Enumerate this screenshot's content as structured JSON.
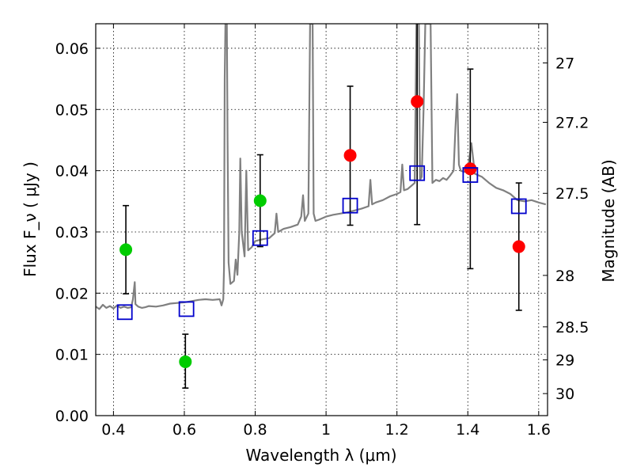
{
  "chart_data": {
    "type": "scatter",
    "title": "",
    "xlabel": "Wavelength  λ (μm)",
    "ylabel": "Flux  F_ν  ( μJy )",
    "ylabel_right": "Magnitude (AB)",
    "xlim": [
      0.35,
      1.625
    ],
    "ylim": [
      0.0,
      0.064
    ],
    "grid": true,
    "xticks": [
      0.4,
      0.6,
      0.8,
      1.0,
      1.2,
      1.4,
      1.6
    ],
    "xtick_labels": [
      "0.4",
      "0.6",
      "0.8",
      "1",
      "1.2",
      "1.4",
      "1.6"
    ],
    "yticks": [
      0.0,
      0.01,
      0.02,
      0.03,
      0.04,
      0.05,
      0.06
    ],
    "ytick_labels": [
      "0.00",
      "0.01",
      "0.02",
      "0.03",
      "0.04",
      "0.05",
      "0.06"
    ],
    "right_ticks": [
      {
        "label": "27",
        "flux": 0.0576
      },
      {
        "label": "27.2",
        "flux": 0.0479
      },
      {
        "label": "27.5",
        "flux": 0.0363
      },
      {
        "label": "28",
        "flux": 0.0229
      },
      {
        "label": "28.5",
        "flux": 0.0145
      },
      {
        "label": "29",
        "flux": 0.0091
      },
      {
        "label": "30",
        "flux": 0.0036
      }
    ],
    "series": [
      {
        "kind": "line",
        "color": "#808080",
        "points": [
          [
            0.35,
            0.0178
          ],
          [
            0.36,
            0.0174
          ],
          [
            0.37,
            0.0181
          ],
          [
            0.38,
            0.0176
          ],
          [
            0.39,
            0.0179
          ],
          [
            0.4,
            0.0175
          ],
          [
            0.41,
            0.018
          ],
          [
            0.42,
            0.0176
          ],
          [
            0.43,
            0.0178
          ],
          [
            0.44,
            0.0176
          ],
          [
            0.45,
            0.0177
          ],
          [
            0.455,
            0.019
          ],
          [
            0.46,
            0.0218
          ],
          [
            0.462,
            0.0182
          ],
          [
            0.47,
            0.0178
          ],
          [
            0.48,
            0.0176
          ],
          [
            0.49,
            0.0177
          ],
          [
            0.5,
            0.0179
          ],
          [
            0.52,
            0.0178
          ],
          [
            0.54,
            0.018
          ],
          [
            0.56,
            0.0183
          ],
          [
            0.58,
            0.0184
          ],
          [
            0.6,
            0.0185
          ],
          [
            0.62,
            0.0187
          ],
          [
            0.64,
            0.0189
          ],
          [
            0.66,
            0.019
          ],
          [
            0.68,
            0.0189
          ],
          [
            0.7,
            0.019
          ],
          [
            0.705,
            0.018
          ],
          [
            0.71,
            0.019
          ],
          [
            0.712,
            0.024
          ],
          [
            0.714,
            0.055
          ],
          [
            0.716,
            0.064
          ],
          [
            0.72,
            0.064
          ],
          [
            0.722,
            0.045
          ],
          [
            0.725,
            0.025
          ],
          [
            0.73,
            0.0215
          ],
          [
            0.74,
            0.022
          ],
          [
            0.745,
            0.0255
          ],
          [
            0.75,
            0.023
          ],
          [
            0.755,
            0.03
          ],
          [
            0.758,
            0.042
          ],
          [
            0.762,
            0.03
          ],
          [
            0.77,
            0.026
          ],
          [
            0.775,
            0.04
          ],
          [
            0.78,
            0.027
          ],
          [
            0.79,
            0.0275
          ],
          [
            0.8,
            0.0285
          ],
          [
            0.82,
            0.0288
          ],
          [
            0.84,
            0.029
          ],
          [
            0.855,
            0.0298
          ],
          [
            0.86,
            0.033
          ],
          [
            0.865,
            0.03
          ],
          [
            0.88,
            0.0305
          ],
          [
            0.9,
            0.0308
          ],
          [
            0.92,
            0.0312
          ],
          [
            0.93,
            0.0325
          ],
          [
            0.935,
            0.036
          ],
          [
            0.94,
            0.0318
          ],
          [
            0.95,
            0.033
          ],
          [
            0.955,
            0.064
          ],
          [
            0.962,
            0.064
          ],
          [
            0.965,
            0.033
          ],
          [
            0.97,
            0.0318
          ],
          [
            0.98,
            0.032
          ],
          [
            1.0,
            0.0325
          ],
          [
            1.02,
            0.0328
          ],
          [
            1.04,
            0.033
          ],
          [
            1.06,
            0.0332
          ],
          [
            1.08,
            0.0335
          ],
          [
            1.1,
            0.0338
          ],
          [
            1.12,
            0.0342
          ],
          [
            1.125,
            0.0385
          ],
          [
            1.13,
            0.0345
          ],
          [
            1.14,
            0.0348
          ],
          [
            1.16,
            0.0352
          ],
          [
            1.18,
            0.0358
          ],
          [
            1.2,
            0.0362
          ],
          [
            1.21,
            0.0365
          ],
          [
            1.215,
            0.041
          ],
          [
            1.22,
            0.0368
          ],
          [
            1.23,
            0.037
          ],
          [
            1.24,
            0.0375
          ],
          [
            1.25,
            0.038
          ],
          [
            1.255,
            0.064
          ],
          [
            1.262,
            0.064
          ],
          [
            1.265,
            0.0385
          ],
          [
            1.27,
            0.039
          ],
          [
            1.275,
            0.05
          ],
          [
            1.28,
            0.064
          ],
          [
            1.29,
            0.064
          ],
          [
            1.295,
            0.064
          ],
          [
            1.3,
            0.038
          ],
          [
            1.31,
            0.0385
          ],
          [
            1.32,
            0.0383
          ],
          [
            1.33,
            0.0388
          ],
          [
            1.34,
            0.0385
          ],
          [
            1.35,
            0.0392
          ],
          [
            1.36,
            0.04
          ],
          [
            1.365,
            0.047
          ],
          [
            1.37,
            0.0525
          ],
          [
            1.375,
            0.041
          ],
          [
            1.38,
            0.04
          ],
          [
            1.39,
            0.0398
          ],
          [
            1.4,
            0.04
          ],
          [
            1.41,
            0.0445
          ],
          [
            1.42,
            0.0395
          ],
          [
            1.44,
            0.039
          ],
          [
            1.46,
            0.038
          ],
          [
            1.48,
            0.0372
          ],
          [
            1.5,
            0.0368
          ],
          [
            1.52,
            0.0362
          ],
          [
            1.54,
            0.0352
          ],
          [
            1.56,
            0.035
          ],
          [
            1.58,
            0.0352
          ],
          [
            1.6,
            0.0348
          ],
          [
            1.62,
            0.0345
          ]
        ]
      },
      {
        "kind": "points",
        "marker": "circle",
        "color": "#00cc00",
        "points": [
          {
            "x": 0.435,
            "y": 0.0271
          },
          {
            "x": 0.603,
            "y": 0.0088,
            "err": [
              0.0045,
              0.0133
            ]
          },
          {
            "x": 0.814,
            "y": 0.0351,
            "err": [
              0.0276,
              0.0426
            ]
          }
        ]
      },
      {
        "kind": "points",
        "marker": "circle",
        "color": "#ff0000",
        "points": [
          {
            "x": 1.068,
            "y": 0.0425,
            "err": [
              0.0311,
              0.0538
            ]
          },
          {
            "x": 1.257,
            "y": 0.0513,
            "err": [
              0.0312,
              0.064
            ]
          },
          {
            "x": 1.407,
            "y": 0.0403,
            "err": [
              0.024,
              0.0566
            ]
          },
          {
            "x": 1.544,
            "y": 0.0276,
            "err": [
              0.0172,
              0.038
            ]
          }
        ]
      },
      {
        "kind": "points",
        "marker": "square",
        "color": "#0000cc",
        "points": [
          {
            "x": 0.432,
            "y": 0.0169
          },
          {
            "x": 0.606,
            "y": 0.0174
          },
          {
            "x": 0.814,
            "y": 0.029
          },
          {
            "x": 1.068,
            "y": 0.0343
          },
          {
            "x": 1.257,
            "y": 0.0396
          },
          {
            "x": 1.407,
            "y": 0.0393
          },
          {
            "x": 1.544,
            "y": 0.0342
          }
        ]
      },
      {
        "kind": "errorbar",
        "color": "#000000",
        "points": [
          {
            "x": 0.435,
            "err": [
              0.0199,
              0.0343
            ]
          }
        ]
      }
    ]
  }
}
